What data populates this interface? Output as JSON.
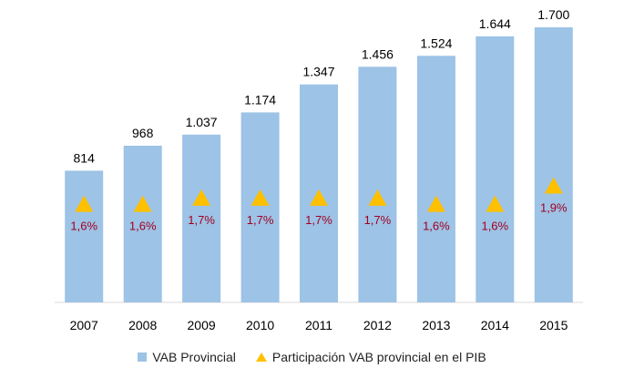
{
  "chart_data": {
    "type": "bar",
    "categories": [
      "2007",
      "2008",
      "2009",
      "2010",
      "2011",
      "2012",
      "2013",
      "2014",
      "2015"
    ],
    "series": [
      {
        "name": "VAB Provincial",
        "type": "bar",
        "values": [
          814,
          968,
          1037,
          1174,
          1347,
          1456,
          1524,
          1644,
          1700
        ],
        "labels": [
          "814",
          "968",
          "1.037",
          "1.174",
          "1.347",
          "1.456",
          "1.524",
          "1.644",
          "1.700"
        ],
        "color": "#9DC3E6"
      },
      {
        "name": "Participación VAB provincial en el PIB",
        "type": "scatter",
        "marker": "triangle",
        "values": [
          1.6,
          1.6,
          1.7,
          1.7,
          1.7,
          1.7,
          1.6,
          1.6,
          1.9
        ],
        "labels": [
          "1,6%",
          "1,6%",
          "1,7%",
          "1,7%",
          "1,7%",
          "1,7%",
          "1,6%",
          "1,6%",
          "1,9%"
        ],
        "color": "#FFC000",
        "label_color": "#A00020"
      }
    ],
    "ylim": [
      0,
      1700
    ],
    "secondary_ylim": [
      0,
      4.5
    ],
    "grid": false,
    "legend_position": "bottom"
  }
}
